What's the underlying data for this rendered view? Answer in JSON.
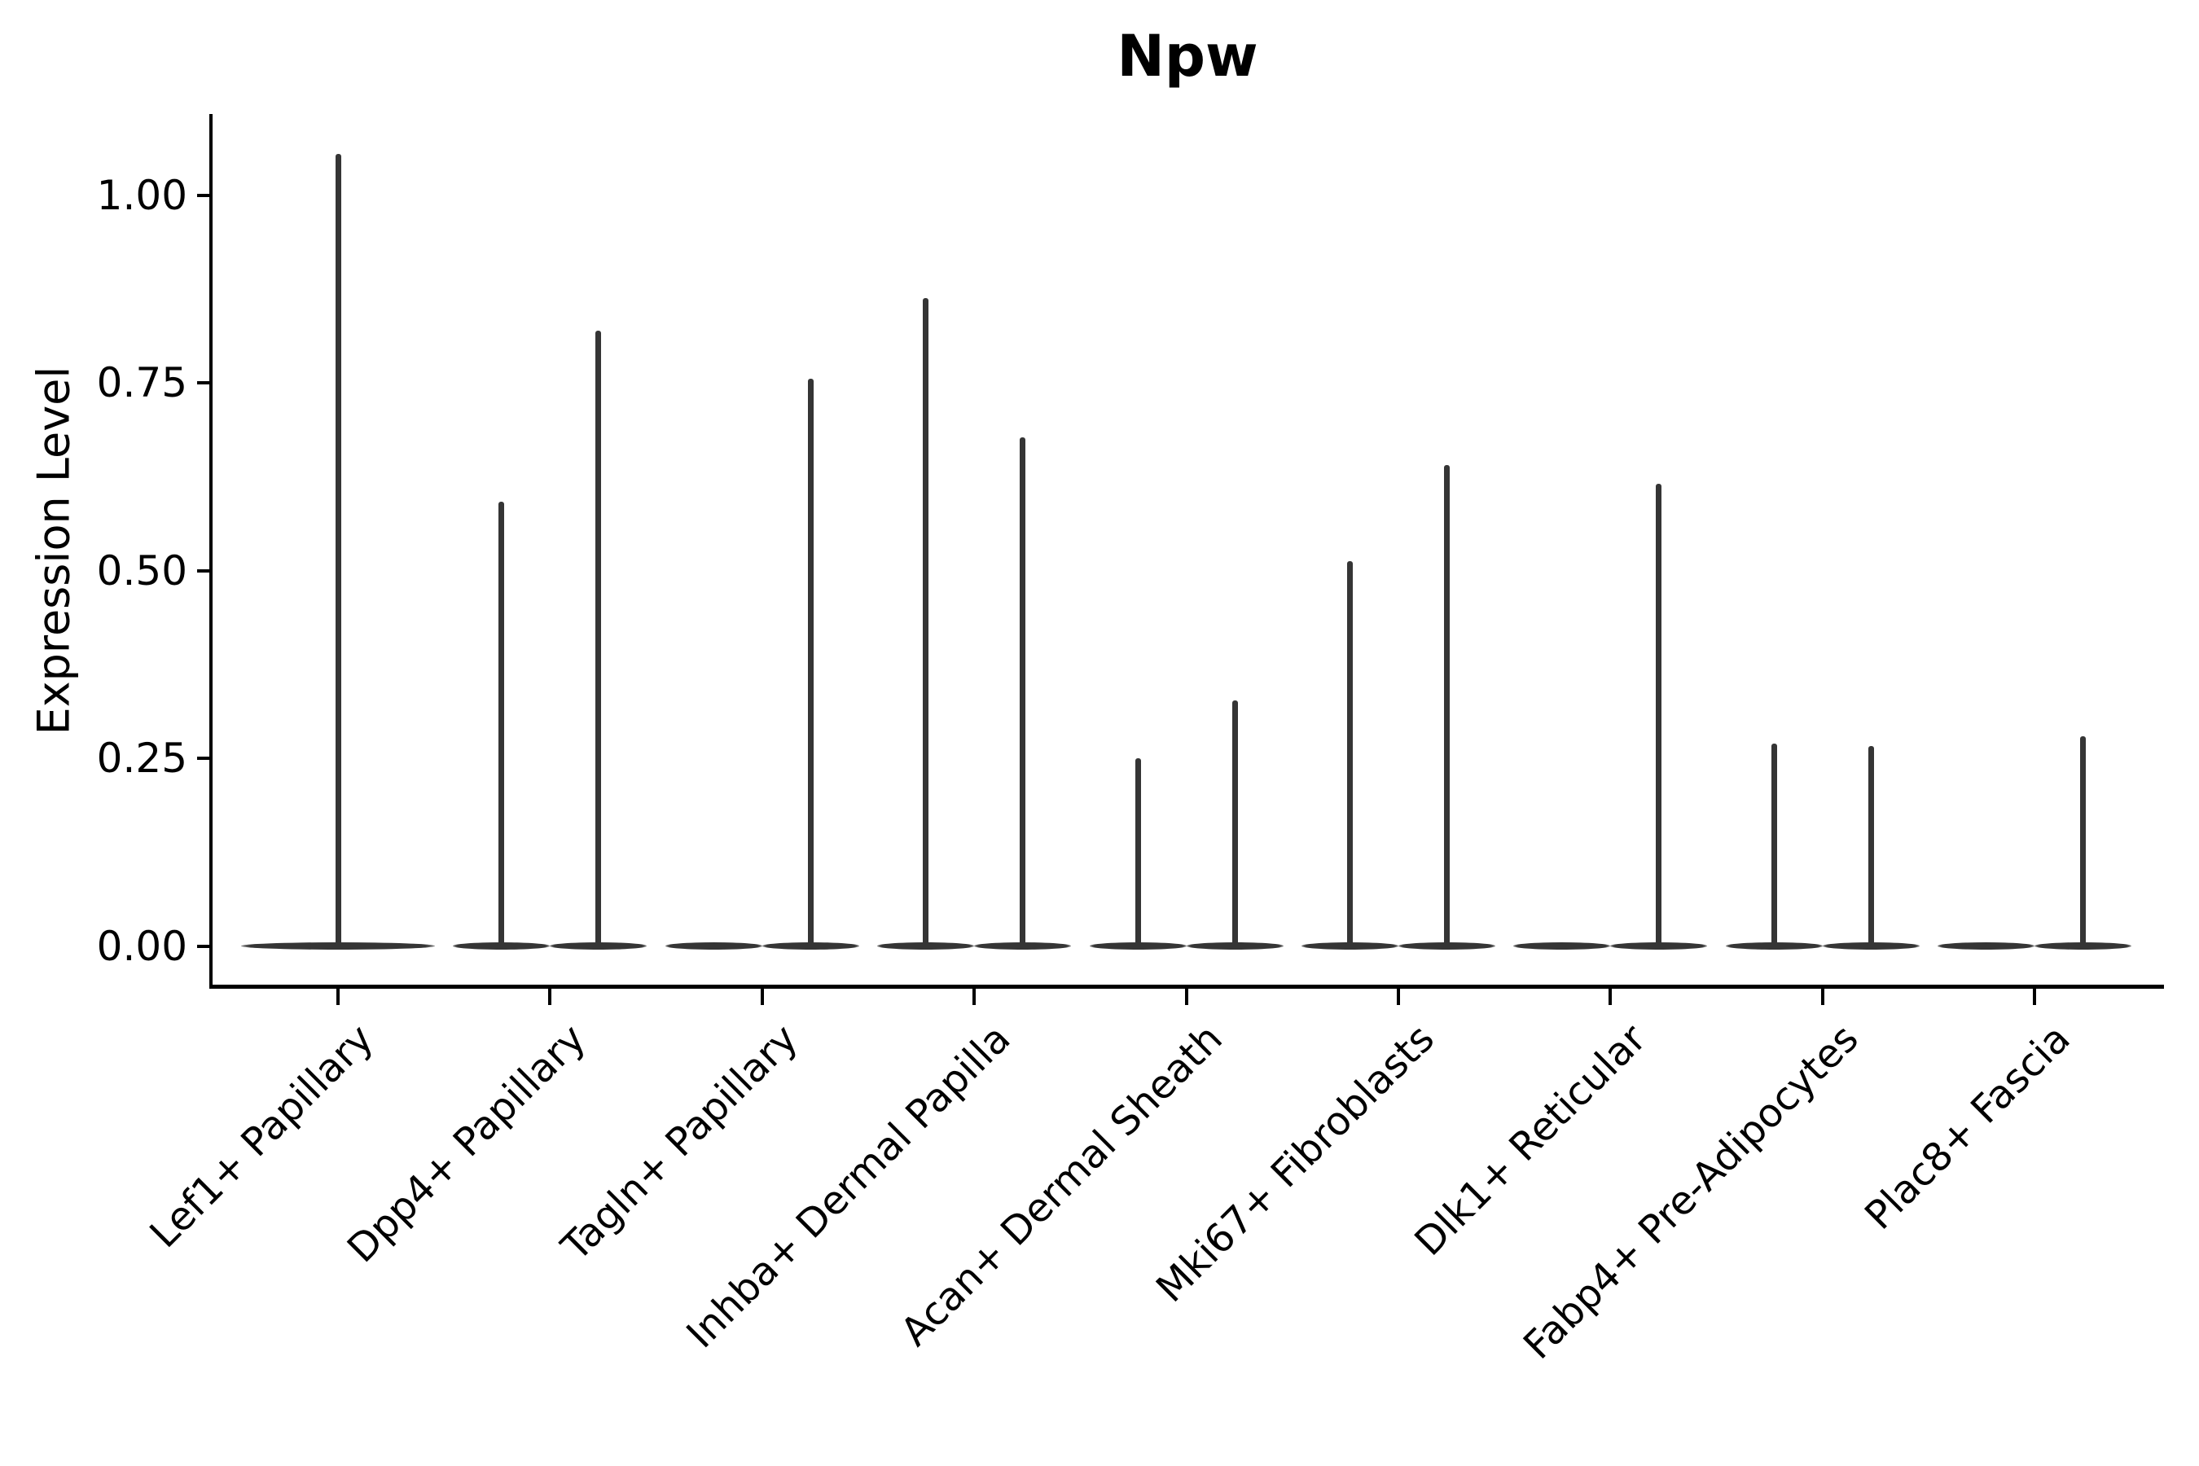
{
  "chart_data": {
    "type": "violin",
    "title": "Npw",
    "ylabel": "Expression Level",
    "xlabel": "",
    "legend": "none",
    "grid": false,
    "ylim": [
      -0.055,
      1.108
    ],
    "y_axis": {
      "ticks": [
        {
          "label": "0.00",
          "value": 0.0
        },
        {
          "label": "0.25",
          "value": 0.25
        },
        {
          "label": "0.50",
          "value": 0.5
        },
        {
          "label": "0.75",
          "value": 0.75
        },
        {
          "label": "1.00",
          "value": 1.0
        }
      ]
    },
    "categories": [
      {
        "label": "Lef1+ Papillary",
        "violins": [
          {
            "position": "full",
            "max_expression": 1.055
          }
        ]
      },
      {
        "label": "Dpp4+ Papillary",
        "violins": [
          {
            "position": "left",
            "max_expression": 0.592
          },
          {
            "position": "right",
            "max_expression": 0.819
          }
        ]
      },
      {
        "label": "Tagln+ Papillary",
        "violins": [
          {
            "position": "left",
            "max_expression": 0
          },
          {
            "position": "right",
            "max_expression": 0.755
          }
        ]
      },
      {
        "label": "Inhba+ Dermal Papilla",
        "violins": [
          {
            "position": "left",
            "max_expression": 0.863
          },
          {
            "position": "right",
            "max_expression": 0.677
          }
        ]
      },
      {
        "label": "Acan+ Dermal Sheath",
        "violins": [
          {
            "position": "left",
            "max_expression": 0.25
          },
          {
            "position": "right",
            "max_expression": 0.327
          }
        ]
      },
      {
        "label": "Mki67+ Fibroblasts",
        "violins": [
          {
            "position": "left",
            "max_expression": 0.513
          },
          {
            "position": "right",
            "max_expression": 0.64
          }
        ]
      },
      {
        "label": "Dlk1+ Reticular",
        "violins": [
          {
            "position": "left",
            "max_expression": 0
          },
          {
            "position": "right",
            "max_expression": 0.616
          }
        ]
      },
      {
        "label": "Fabp4+ Pre-Adipocytes",
        "violins": [
          {
            "position": "left",
            "max_expression": 0.27
          },
          {
            "position": "right",
            "max_expression": 0.266
          }
        ]
      },
      {
        "label": "Plac8+ Fascia",
        "violins": [
          {
            "position": "left",
            "max_expression": 0
          },
          {
            "position": "right",
            "max_expression": 0.279
          }
        ]
      }
    ],
    "colors": {
      "violin": "#353535",
      "axis": "#000000",
      "text": "#000000",
      "background": "#ffffff"
    }
  }
}
